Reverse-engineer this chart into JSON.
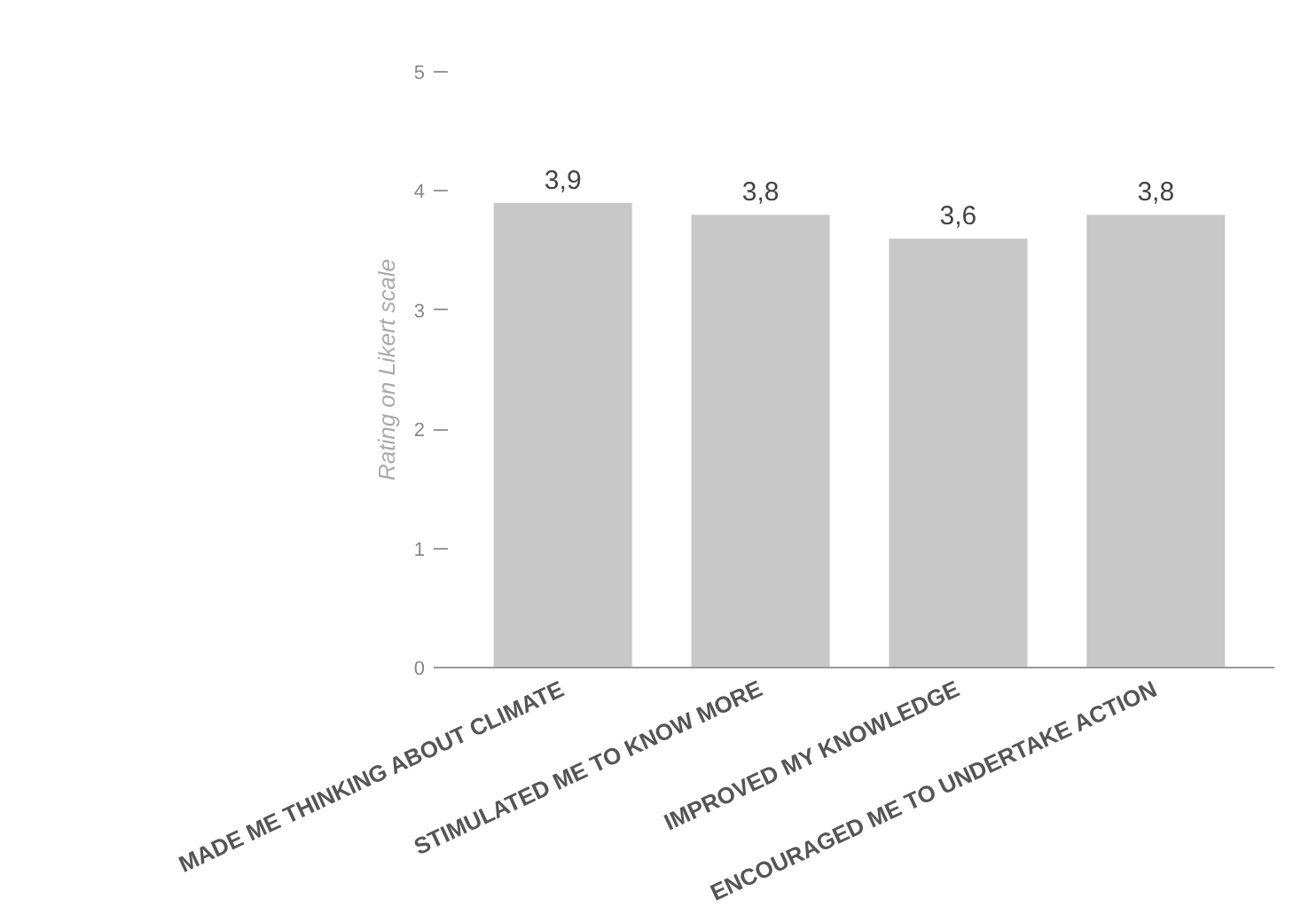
{
  "chart_data": {
    "type": "bar",
    "ylabel": "Rating on Likert scale",
    "categories": [
      "MADE ME THINKING ABOUT CLIMATE",
      "STIMULATED ME TO KNOW MORE",
      "IMPROVED MY KNOWLEDGE",
      "ENCOURAGED ME TO UNDERTAKE ACTION"
    ],
    "values": [
      3.9,
      3.8,
      3.6,
      3.8
    ],
    "value_labels": [
      "3,9",
      "3,8",
      "3,6",
      "3,8"
    ],
    "color": "#c8c8c8",
    "ylim": [
      0,
      5
    ],
    "yticks": [
      0,
      1,
      2,
      3,
      4,
      5
    ],
    "grid": false
  }
}
